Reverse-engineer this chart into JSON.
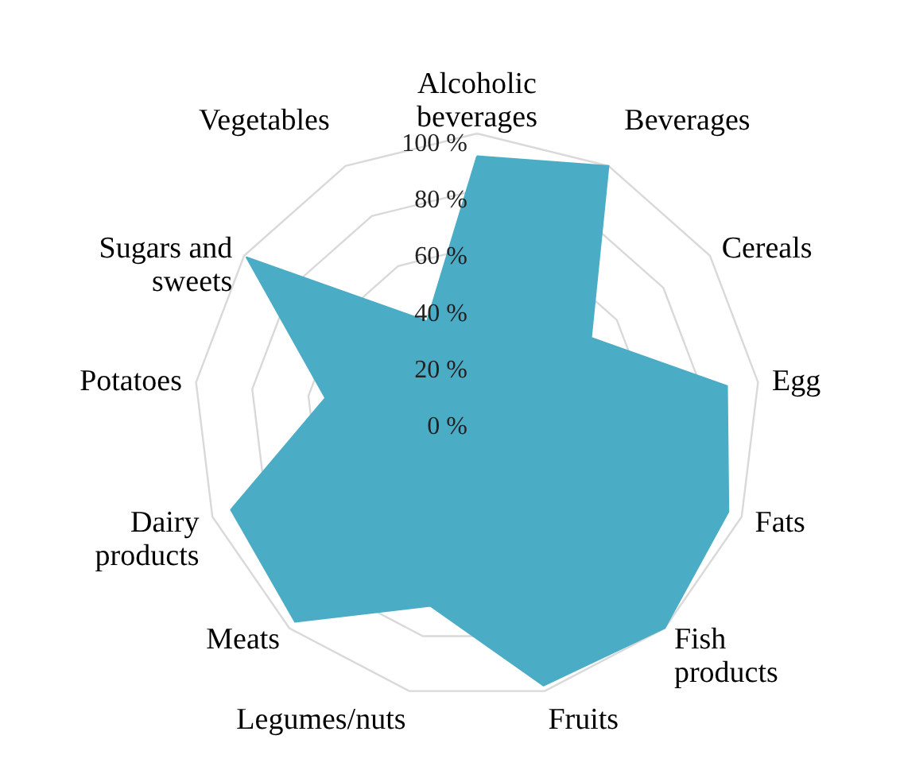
{
  "chart_data": {
    "type": "radar",
    "categories": [
      "Alcoholic beverages",
      "Beverages",
      "Cereals",
      "Egg",
      "Fats",
      "Fish products",
      "Fruits",
      "Legumes/nuts",
      "Meats",
      "Dairy products",
      "Potatoes",
      "Sugars and sweets",
      "Vegetables"
    ],
    "series": [
      {
        "color": "#4bacc6",
        "values": [
          92,
          100,
          49,
          89,
          95,
          100,
          98,
          69,
          97,
          93,
          54,
          99,
          38
        ]
      }
    ],
    "ylim": [
      0,
      100
    ],
    "yticks": [
      {
        "value": 0,
        "label": "0 %"
      },
      {
        "value": 20,
        "label": "20 %"
      },
      {
        "value": 40,
        "label": "40 %"
      },
      {
        "value": 60,
        "label": "60 %"
      },
      {
        "value": 80,
        "label": "80 %"
      },
      {
        "value": 100,
        "label": "100 %"
      }
    ],
    "grid": true
  }
}
